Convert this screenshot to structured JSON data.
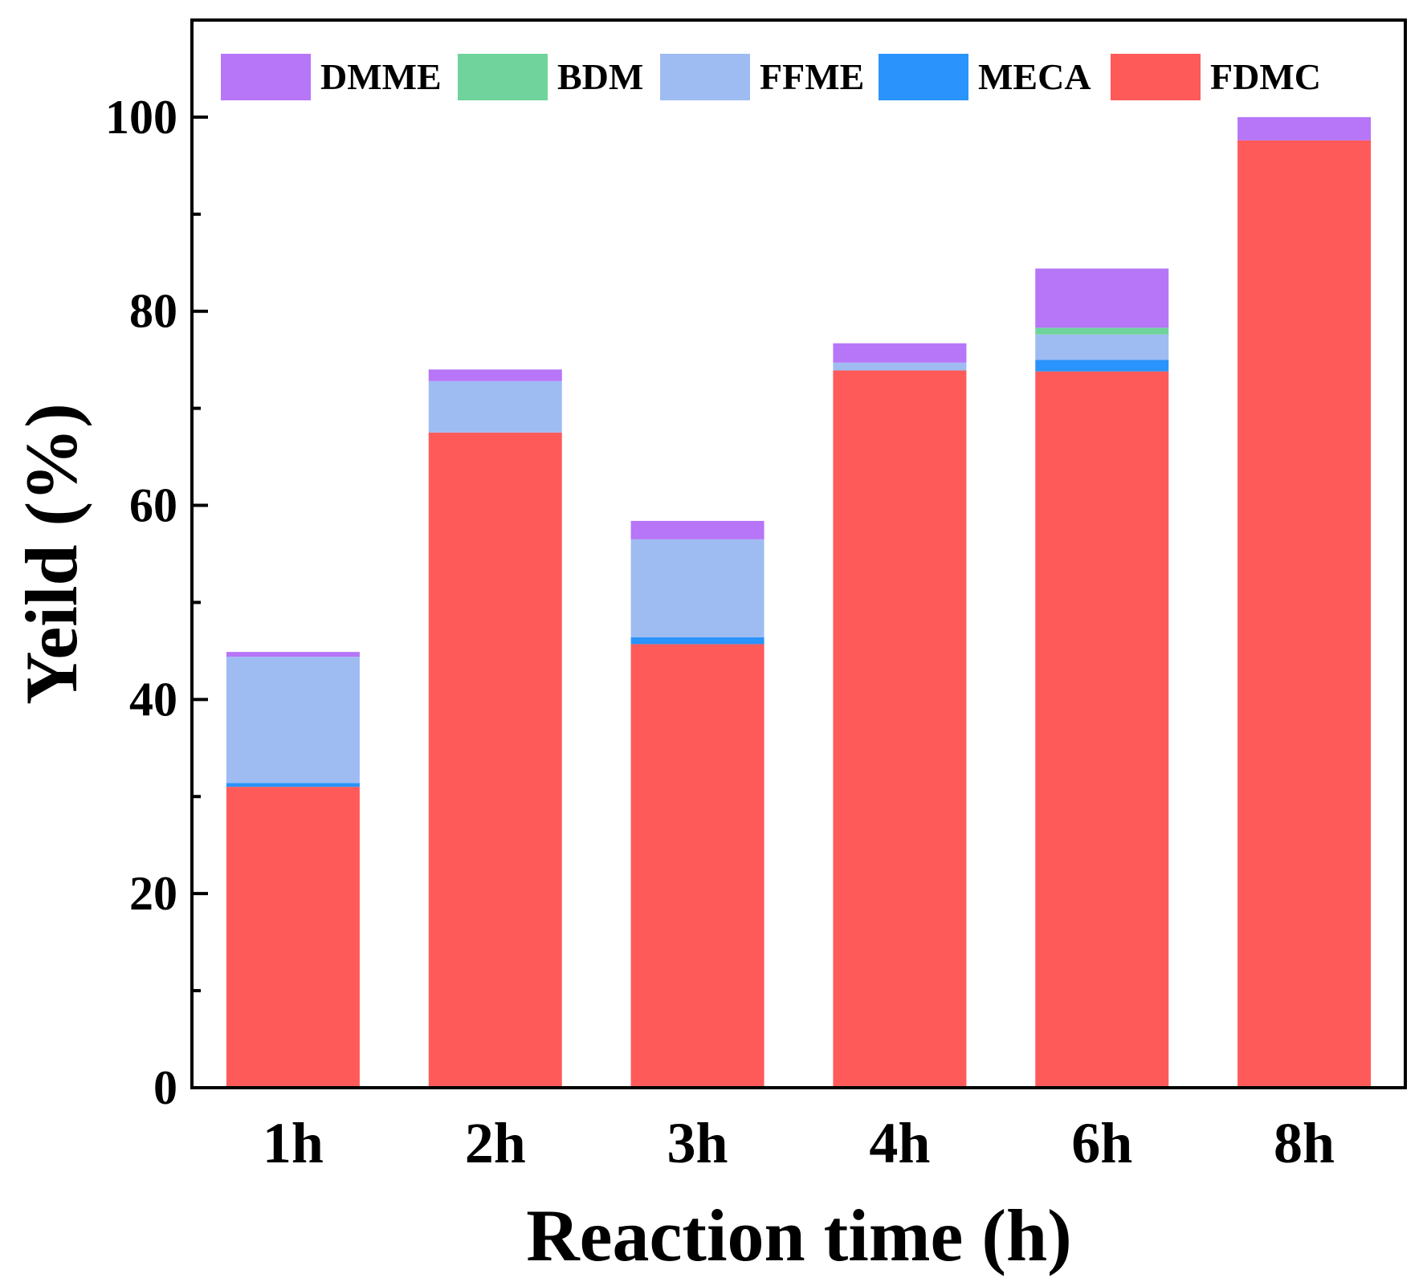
{
  "chart_data": {
    "type": "bar",
    "stacked": true,
    "title": "",
    "xlabel": "Reaction time (h)",
    "ylabel": "Yeild (%)",
    "categories": [
      "1h",
      "2h",
      "3h",
      "4h",
      "6h",
      "8h"
    ],
    "ylim": [
      0,
      110
    ],
    "yticks": [
      0,
      20,
      40,
      60,
      80,
      100
    ],
    "y_minor_ticks": [
      10,
      30,
      50,
      70,
      90
    ],
    "legend_placement": "top",
    "grid": false,
    "series": [
      {
        "name": "FDMC",
        "color": "#ff5a5a",
        "values": [
          31.0,
          67.5,
          45.7,
          73.9,
          73.8,
          97.6
        ]
      },
      {
        "name": "MECA",
        "color": "#2a93fc",
        "values": [
          0.4,
          0.0,
          0.7,
          0.0,
          1.2,
          0.0
        ]
      },
      {
        "name": "FFME",
        "color": "#9fbcf2",
        "values": [
          13.0,
          5.3,
          10.1,
          0.8,
          2.6,
          0.0
        ]
      },
      {
        "name": "BDM",
        "color": "#6fd39b",
        "values": [
          0.0,
          0.0,
          0.0,
          0.0,
          0.7,
          0.0
        ]
      },
      {
        "name": "DMME",
        "color": "#b676f7",
        "values": [
          0.5,
          1.2,
          1.9,
          2.0,
          6.1,
          2.4
        ]
      }
    ],
    "legend_order": [
      "DMME",
      "BDM",
      "FFME",
      "MECA",
      "FDMC"
    ]
  }
}
